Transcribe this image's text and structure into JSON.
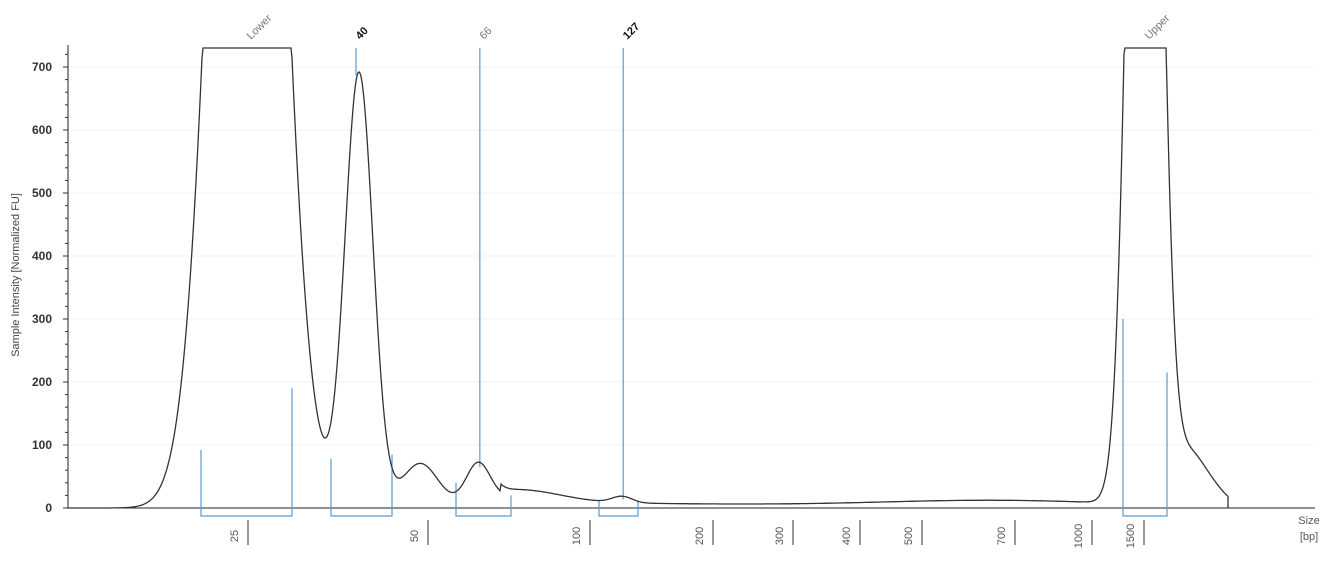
{
  "chart_data": {
    "type": "line",
    "title": "",
    "ylabel": "Sample Intensity [Normalized FU]",
    "xlabel": "Size [bp]",
    "ylim": [
      0,
      730
    ],
    "y_ticks": [
      "0",
      "100",
      "200",
      "300",
      "400",
      "500",
      "600",
      "700"
    ],
    "x_ticks": [
      "25",
      "50",
      "100",
      "200",
      "300",
      "400",
      "500",
      "700",
      "1000",
      "1500"
    ],
    "x_tick_values": [
      25,
      50,
      100,
      200,
      300,
      400,
      500,
      700,
      1000,
      1500
    ],
    "x_axis_label_lines": [
      "Size",
      "[bp]"
    ],
    "grid": false,
    "peaks": [
      {
        "label": "Lower",
        "size_bp": 25,
        "height": 730,
        "bold": false
      },
      {
        "label": "40",
        "size_bp": 40,
        "height": 690,
        "bold": true
      },
      {
        "label": "66",
        "size_bp": 66,
        "height": 68,
        "bold": false
      },
      {
        "label": "127",
        "size_bp": 127,
        "height": 17,
        "bold": true
      },
      {
        "label": "Upper",
        "size_bp": 1500,
        "height": 730,
        "bold": false
      }
    ],
    "trace_color": "#333333",
    "marker_color": "#5b9bd5"
  }
}
